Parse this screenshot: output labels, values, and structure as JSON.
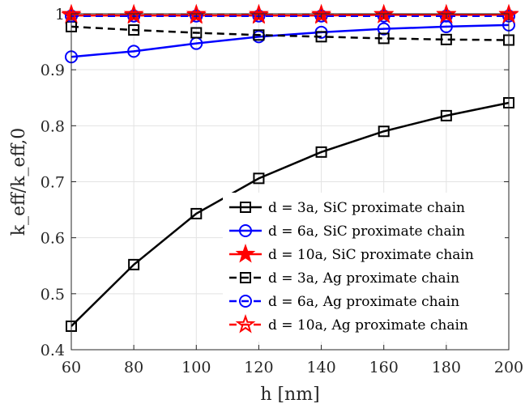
{
  "chart_data": {
    "type": "line",
    "xlabel": "h [nm]",
    "ylabel": "k_eff/k_eff,0",
    "xlim": [
      60,
      200
    ],
    "ylim": [
      0.4,
      1.0
    ],
    "x_ticks": [
      "60",
      "80",
      "100",
      "120",
      "140",
      "160",
      "180",
      "200"
    ],
    "y_ticks": [
      "0.4",
      "0.5",
      "0.6",
      "0.7",
      "0.8",
      "0.9",
      "1"
    ],
    "grid": true,
    "legend_position": "lower-right",
    "x": [
      60,
      80,
      100,
      120,
      140,
      160,
      180,
      200
    ],
    "series": [
      {
        "name": "d = 3a, SiC proximate chain",
        "color": "#000000",
        "dash": "solid",
        "marker": "square",
        "values": [
          0.442,
          0.552,
          0.643,
          0.706,
          0.753,
          0.79,
          0.818,
          0.841
        ]
      },
      {
        "name": "d = 6a, SiC proximate chain",
        "color": "#0000ff",
        "dash": "solid",
        "marker": "circle",
        "values": [
          0.923,
          0.933,
          0.947,
          0.959,
          0.967,
          0.973,
          0.977,
          0.98
        ]
      },
      {
        "name": "d = 10a, SiC proximate chain",
        "color": "#ff0000",
        "dash": "solid",
        "marker": "star",
        "values": [
          0.997,
          0.997,
          0.997,
          0.997,
          0.997,
          0.998,
          0.998,
          0.998
        ]
      },
      {
        "name": "d = 3a, Ag proximate chain",
        "color": "#000000",
        "dash": "dashed",
        "marker": "square",
        "values": [
          0.977,
          0.971,
          0.966,
          0.962,
          0.959,
          0.956,
          0.954,
          0.953
        ]
      },
      {
        "name": "d = 6a, Ag proximate chain",
        "color": "#0000ff",
        "dash": "dashed",
        "marker": "circle",
        "values": [
          0.996,
          0.996,
          0.996,
          0.996,
          0.996,
          0.996,
          0.996,
          0.996
        ]
      },
      {
        "name": "d = 10a, Ag proximate chain",
        "color": "#ff0000",
        "dash": "dashed",
        "marker": "star",
        "values": [
          0.999,
          0.999,
          0.999,
          0.999,
          0.999,
          0.999,
          0.999,
          0.999
        ]
      }
    ]
  }
}
